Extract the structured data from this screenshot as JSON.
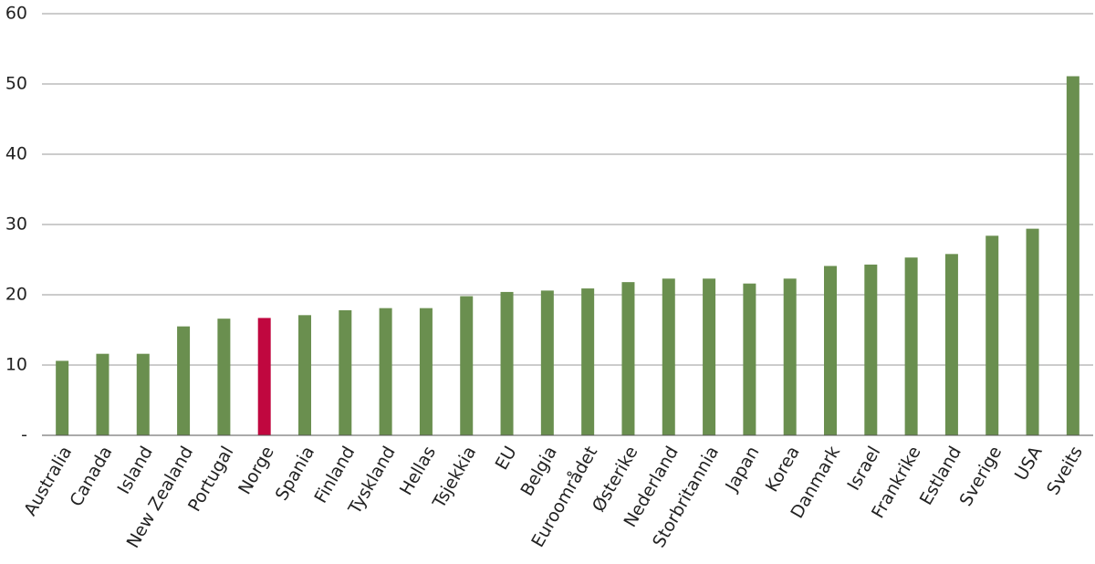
{
  "chart_data": {
    "type": "bar",
    "categories": [
      "Australia",
      "Canada",
      "Island",
      "New Zealand",
      "Portugal",
      "Norge",
      "Spania",
      "Finland",
      "Tyskland",
      "Hellas",
      "Tsjekkia",
      "EU",
      "Belgia",
      "Euroområdet",
      "Østerike",
      "Nederland",
      "Storbritannia",
      "Japan",
      "Korea",
      "Danmark",
      "Israel",
      "Frankrike",
      "Estland",
      "Sverige",
      "USA",
      "Sveits"
    ],
    "values": [
      10.6,
      11.6,
      11.6,
      15.5,
      16.6,
      16.7,
      17.1,
      17.8,
      18.1,
      18.1,
      19.8,
      20.4,
      20.6,
      20.9,
      21.8,
      22.3,
      22.3,
      21.6,
      22.3,
      24.1,
      24.3,
      25.3,
      25.8,
      28.4,
      29.4,
      51.1
    ],
    "colors": [
      "#6a8f4f",
      "#6a8f4f",
      "#6a8f4f",
      "#6a8f4f",
      "#6a8f4f",
      "#c0073f",
      "#6a8f4f",
      "#6a8f4f",
      "#6a8f4f",
      "#6a8f4f",
      "#6a8f4f",
      "#6a8f4f",
      "#6a8f4f",
      "#6a8f4f",
      "#6a8f4f",
      "#6a8f4f",
      "#6a8f4f",
      "#6a8f4f",
      "#6a8f4f",
      "#6a8f4f",
      "#6a8f4f",
      "#6a8f4f",
      "#6a8f4f",
      "#6a8f4f",
      "#6a8f4f",
      "#6a8f4f"
    ],
    "ylim": [
      0,
      60
    ],
    "yticks": [
      {
        "value": 0,
        "label": "-"
      },
      10,
      20,
      30,
      40,
      50,
      60
    ],
    "grid": true
  }
}
